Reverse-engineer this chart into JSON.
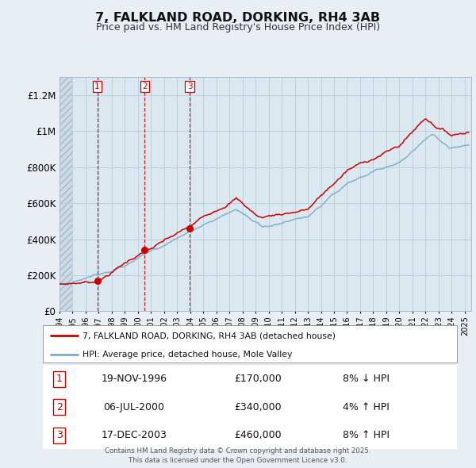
{
  "title": "7, FALKLAND ROAD, DORKING, RH4 3AB",
  "subtitle": "Price paid vs. HM Land Registry's House Price Index (HPI)",
  "hpi_label": "HPI: Average price, detached house, Mole Valley",
  "price_label": "7, FALKLAND ROAD, DORKING, RH4 3AB (detached house)",
  "background_color": "#e8eef4",
  "plot_background": "#dce8f0",
  "grid_color": "#b8ccd8",
  "price_line_color": "#cc0000",
  "hpi_line_color": "#7aaac8",
  "marker_color": "#cc0000",
  "vline_color": "#cc0000",
  "sale_events": [
    {
      "num": 1,
      "date": "19-NOV-1996",
      "year": 1996.89,
      "price": 170000,
      "pct": "8%",
      "dir": "↓"
    },
    {
      "num": 2,
      "date": "06-JUL-2000",
      "year": 2000.51,
      "price": 340000,
      "pct": "4%",
      "dir": "↑"
    },
    {
      "num": 3,
      "date": "17-DEC-2003",
      "year": 2003.96,
      "price": 460000,
      "pct": "8%",
      "dir": "↑"
    }
  ],
  "xmin": 1994,
  "xmax": 2025.5,
  "ymin": 0,
  "ymax": 1300000,
  "yticks": [
    0,
    200000,
    400000,
    600000,
    800000,
    1000000,
    1200000
  ],
  "ytick_labels": [
    "£0",
    "£200K",
    "£400K",
    "£600K",
    "£800K",
    "£1M",
    "£1.2M"
  ],
  "footnote": "Contains HM Land Registry data © Crown copyright and database right 2025.\nThis data is licensed under the Open Government Licence v3.0."
}
